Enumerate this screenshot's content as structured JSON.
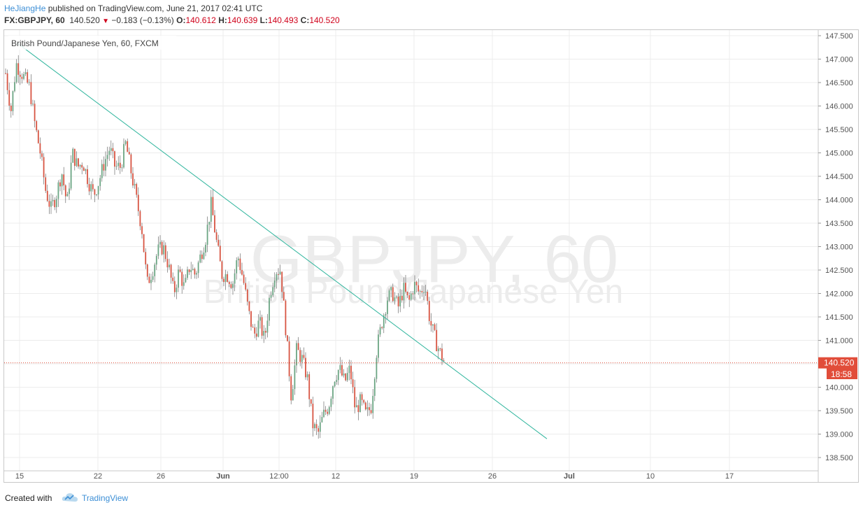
{
  "header": {
    "author": "HeJiangHe",
    "published": "published on TradingView.com, June 21, 2017 02:41 UTC",
    "symbol": "FX:GBPJPY, 60",
    "price": "140.520",
    "change": "−0.183 (−0.13%)",
    "open_label": "O:",
    "open": "140.612",
    "high_label": "H:",
    "high": "140.639",
    "low_label": "L:",
    "low": "140.493",
    "close_label": "C:",
    "close": "140.520"
  },
  "chart": {
    "legend": "British Pound/Japanese Yen, 60, FXCM",
    "watermark_symbol": "GBPJPY, 60",
    "watermark_name": "British Pound/Japanese Yen",
    "price_label": "140.520",
    "countdown": "18:58",
    "colors": {
      "up": "#6ba583",
      "down": "#d75442",
      "trendline": "#2fb59d",
      "price_line": "#e14d3a",
      "grid": "#ececec"
    }
  },
  "chart_data": {
    "type": "candlestick",
    "symbol": "GBPJPY",
    "y_ticks": [
      "147.500",
      "147.000",
      "146.500",
      "146.000",
      "145.500",
      "145.000",
      "144.500",
      "144.000",
      "143.500",
      "143.000",
      "142.500",
      "142.000",
      "141.500",
      "141.000",
      "140.500",
      "140.000",
      "139.500",
      "139.000",
      "138.500"
    ],
    "x_ticks": [
      "15",
      "22",
      "26",
      "Jun",
      "12:00",
      "12",
      "19",
      "26",
      "Jul",
      "10",
      "17"
    ],
    "ylim": [
      138.2,
      147.6
    ],
    "path": [
      [
        0,
        146.7
      ],
      [
        0.02,
        145.9
      ],
      [
        0.04,
        146.9
      ],
      [
        0.07,
        146.6
      ],
      [
        0.09,
        146.4
      ],
      [
        0.11,
        145.6
      ],
      [
        0.13,
        145.0
      ],
      [
        0.15,
        144.2
      ],
      [
        0.17,
        143.8
      ],
      [
        0.19,
        144.1
      ],
      [
        0.21,
        144.6
      ],
      [
        0.23,
        143.9
      ],
      [
        0.25,
        145.0
      ],
      [
        0.27,
        144.7
      ],
      [
        0.29,
        144.8
      ],
      [
        0.31,
        144.4
      ],
      [
        0.33,
        144.1
      ],
      [
        0.35,
        144.4
      ],
      [
        0.37,
        144.8
      ],
      [
        0.39,
        145.1
      ],
      [
        0.41,
        144.7
      ],
      [
        0.43,
        144.7
      ],
      [
        0.45,
        145.2
      ],
      [
        0.47,
        144.6
      ],
      [
        0.49,
        144.0
      ],
      [
        0.51,
        143.4
      ],
      [
        0.53,
        142.2
      ],
      [
        0.55,
        142.5
      ],
      [
        0.57,
        142.9
      ],
      [
        0.59,
        143.0
      ],
      [
        0.61,
        142.6
      ],
      [
        0.63,
        142.0
      ],
      [
        0.65,
        142.5
      ],
      [
        0.67,
        142.1
      ],
      [
        0.69,
        142.6
      ],
      [
        0.71,
        142.4
      ],
      [
        0.73,
        142.8
      ],
      [
        0.75,
        143.2
      ],
      [
        0.77,
        143.9
      ],
      [
        0.79,
        143.1
      ],
      [
        0.81,
        142.4
      ],
      [
        0.83,
        142.4
      ],
      [
        0.85,
        142.2
      ],
      [
        0.87,
        142.8
      ],
      [
        0.89,
        142.3
      ],
      [
        0.91,
        141.6
      ],
      [
        0.93,
        141.1
      ],
      [
        0.95,
        141.4
      ],
      [
        0.97,
        141.0
      ],
      [
        0.99,
        142.0
      ],
      [
        1.01,
        142.5
      ],
      [
        1.03,
        142.5
      ],
      [
        1.05,
        141.2
      ],
      [
        1.07,
        139.8
      ],
      [
        1.09,
        140.8
      ],
      [
        1.11,
        140.6
      ],
      [
        1.13,
        140.2
      ],
      [
        1.15,
        139.2
      ],
      [
        1.17,
        139.0
      ],
      [
        1.19,
        139.4
      ],
      [
        1.21,
        139.6
      ],
      [
        1.23,
        140.2
      ],
      [
        1.25,
        140.4
      ],
      [
        1.27,
        140.1
      ],
      [
        1.29,
        140.4
      ],
      [
        1.31,
        139.5
      ],
      [
        1.33,
        139.7
      ],
      [
        1.35,
        139.4
      ],
      [
        1.37,
        139.6
      ],
      [
        1.39,
        140.8
      ],
      [
        1.41,
        141.4
      ],
      [
        1.43,
        141.9
      ],
      [
        1.45,
        142.0
      ],
      [
        1.47,
        141.7
      ],
      [
        1.49,
        142.1
      ],
      [
        1.51,
        141.8
      ],
      [
        1.53,
        142.2
      ],
      [
        1.55,
        142.0
      ],
      [
        1.57,
        142.2
      ],
      [
        1.59,
        141.4
      ],
      [
        1.61,
        141.0
      ],
      [
        1.63,
        140.7
      ],
      [
        1.645,
        140.52
      ]
    ],
    "trendline": [
      [
        147.35,
        "start"
      ],
      [
        138.9,
        "end"
      ]
    ],
    "last_price": 140.52
  }
}
